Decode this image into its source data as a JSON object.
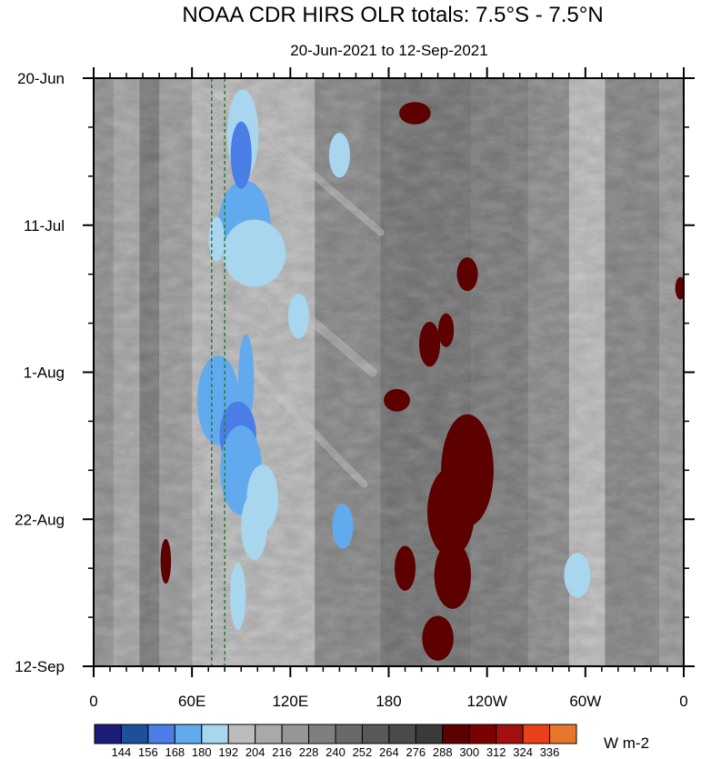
{
  "chart_data": {
    "type": "heatmap",
    "title": "NOAA CDR HIRS OLR totals: 7.5°S - 7.5°N",
    "subtitle": "20-Jun-2021 to 12-Sep-2021",
    "xlabel": "",
    "ylabel": "",
    "x_range_deg_east": [
      0,
      360
    ],
    "y_range": [
      "20-Jun-2021",
      "12-Sep-2021"
    ],
    "y_reversed": true,
    "x_ticks": [
      {
        "lon": 0,
        "label": "0"
      },
      {
        "lon": 60,
        "label": "60E"
      },
      {
        "lon": 120,
        "label": "120E"
      },
      {
        "lon": 180,
        "label": "180"
      },
      {
        "lon": 240,
        "label": "120W"
      },
      {
        "lon": 300,
        "label": "60W"
      },
      {
        "lon": 360,
        "label": "0"
      }
    ],
    "y_ticks": [
      {
        "day": 0,
        "label": "20-Jun"
      },
      {
        "day": 21,
        "label": "11-Jul"
      },
      {
        "day": 42,
        "label": "1-Aug"
      },
      {
        "day": 63,
        "label": "22-Aug"
      },
      {
        "day": 84,
        "label": "12-Sep"
      }
    ],
    "reference_lines_lon": [
      72,
      80
    ],
    "reference_line_color": "#2e7d32",
    "colorbar": {
      "units": "W m-2",
      "levels": [
        144,
        156,
        168,
        180,
        192,
        204,
        216,
        228,
        240,
        252,
        264,
        276,
        288,
        300,
        312,
        324,
        336
      ],
      "colors": [
        "#1c1c7a",
        "#1e4f9a",
        "#4a7de6",
        "#62aaee",
        "#a8d6ee",
        "#bcbcbc",
        "#a9a9a9",
        "#969696",
        "#7f7f7f",
        "#696969",
        "#585858",
        "#4a4a4a",
        "#3a3a3a",
        "#5c0000",
        "#7a0000",
        "#a31010",
        "#e8401a",
        "#e8762a"
      ]
    },
    "features": [
      {
        "kind": "convective-band",
        "description_lon_start": 65,
        "lon_end": 140,
        "day_start": 0,
        "day_end": 84
      },
      {
        "kind": "low-olr-min",
        "lon": 95,
        "day": 57,
        "value": 168
      }
    ]
  }
}
